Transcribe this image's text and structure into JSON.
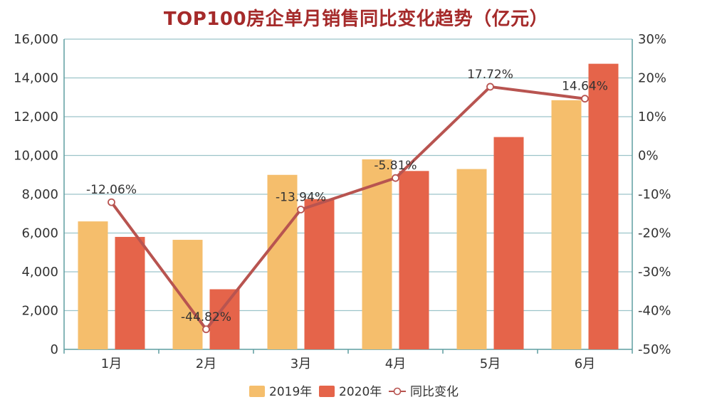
{
  "chart_data": {
    "type": "bar",
    "title": "TOP100房企单月销售同比变化趋势（亿元）",
    "categories": [
      "1月",
      "2月",
      "3月",
      "4月",
      "5月",
      "6月"
    ],
    "series": [
      {
        "name": "2019年",
        "type": "bar",
        "axis": "left",
        "color": "#f5be6c",
        "values": [
          6600,
          5650,
          9000,
          9800,
          9300,
          12850
        ]
      },
      {
        "name": "2020年",
        "type": "bar",
        "axis": "left",
        "color": "#e5644a",
        "values": [
          5800,
          3100,
          7750,
          9200,
          10950,
          14730
        ]
      },
      {
        "name": "同比变化",
        "type": "line",
        "axis": "right",
        "color": "#b85450",
        "values": [
          -12.06,
          -44.82,
          -13.94,
          -5.81,
          17.72,
          14.64
        ],
        "labels": [
          "-12.06%",
          "-44.82%",
          "-13.94%",
          "-5.81%",
          "17.72%",
          "14.64%"
        ]
      }
    ],
    "ylim": [
      0,
      16000
    ],
    "y_ticks": [
      "0",
      "2,000",
      "4,000",
      "6,000",
      "8,000",
      "10,000",
      "12,000",
      "14,000",
      "16,000"
    ],
    "y2lim": [
      -50,
      30
    ],
    "y2_ticks": [
      "-50%",
      "-40%",
      "-30%",
      "-20%",
      "-10%",
      "0%",
      "10%",
      "20%",
      "30%"
    ],
    "grid": true,
    "legend": "bottom-center"
  }
}
